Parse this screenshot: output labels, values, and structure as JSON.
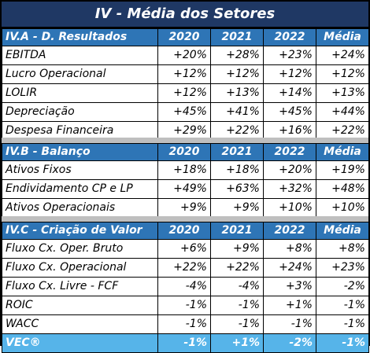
{
  "title": "IV - Média dos Setores",
  "years": [
    "2020",
    "2021",
    "2022",
    "Média"
  ],
  "sections": [
    {
      "header": "IV.A - D. Resultados",
      "rows": [
        {
          "label": "EBITDA",
          "values": [
            "+20%",
            "+28%",
            "+23%",
            "+24%"
          ]
        },
        {
          "label": "Lucro Operacional",
          "values": [
            "+12%",
            "+12%",
            "+12%",
            "+12%"
          ]
        },
        {
          "label": "LOLIR",
          "values": [
            "+12%",
            "+13%",
            "+14%",
            "+13%"
          ]
        },
        {
          "label": "Depreciação",
          "values": [
            "+45%",
            "+41%",
            "+45%",
            "+44%"
          ]
        },
        {
          "label": "Despesa Financeira",
          "values": [
            "+29%",
            "+22%",
            "+16%",
            "+22%"
          ]
        }
      ]
    },
    {
      "header": "IV.B - Balanço",
      "rows": [
        {
          "label": "Ativos Fixos",
          "values": [
            "+18%",
            "+18%",
            "+20%",
            "+19%"
          ]
        },
        {
          "label": "Endividamento CP e LP",
          "values": [
            "+49%",
            "+63%",
            "+32%",
            "+48%"
          ]
        },
        {
          "label": "Ativos Operacionais",
          "values": [
            "+9%",
            "+9%",
            "+10%",
            "+10%"
          ]
        }
      ]
    },
    {
      "header": "IV.C - Criação de Valor",
      "rows": [
        {
          "label": "Fluxo Cx. Oper. Bruto",
          "values": [
            "+6%",
            "+9%",
            "+8%",
            "+8%"
          ]
        },
        {
          "label": "Fluxo Cx. Operacional",
          "values": [
            "+22%",
            "+22%",
            "+24%",
            "+23%"
          ]
        },
        {
          "label": "Fluxo Cx. Livre - FCF",
          "values": [
            "-4%",
            "-4%",
            "+3%",
            "-2%"
          ]
        },
        {
          "label": "ROIC",
          "values": [
            "-1%",
            "-1%",
            "+1%",
            "-1%"
          ]
        },
        {
          "label": "WACC",
          "values": [
            "-1%",
            "-1%",
            "-1%",
            "-1%"
          ]
        }
      ],
      "total": {
        "label": "VEC®",
        "values": [
          "-1%",
          "+1%",
          "-2%",
          "-1%"
        ]
      }
    }
  ],
  "colors": {
    "title_bg": "#1f3864",
    "header_bg": "#2e75b6",
    "total_bg": "#56b4e9",
    "gap": "#bfbfbf"
  }
}
